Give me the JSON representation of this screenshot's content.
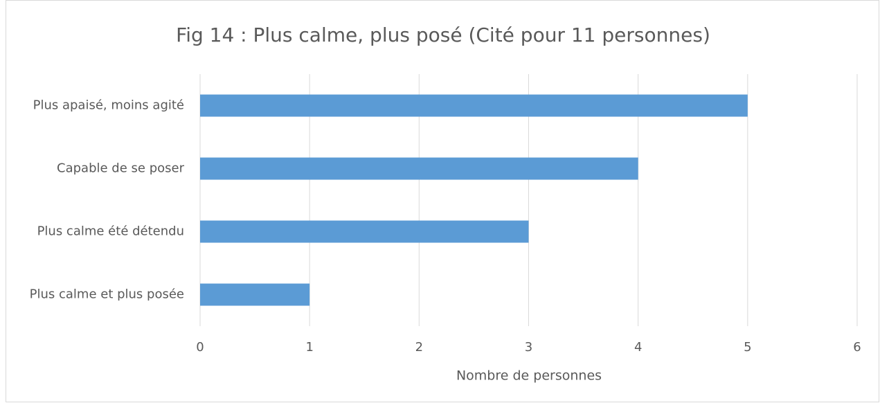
{
  "chart_data": {
    "type": "bar",
    "orientation": "horizontal",
    "title": "Fig 14 : Plus calme, plus posé (Cité pour 11 personnes)",
    "x_label": "Nombre de personnes",
    "categories": [
      "Plus apaisé, moins agité",
      "Capable de se poser",
      "Plus calme été détendu",
      "Plus calme et plus posée"
    ],
    "values": [
      5,
      4,
      3,
      1
    ],
    "color": "#5b9bd5",
    "xlim": [
      0,
      6
    ],
    "xticks": [
      0,
      1,
      2,
      3,
      4,
      5,
      6
    ],
    "grid": true
  }
}
